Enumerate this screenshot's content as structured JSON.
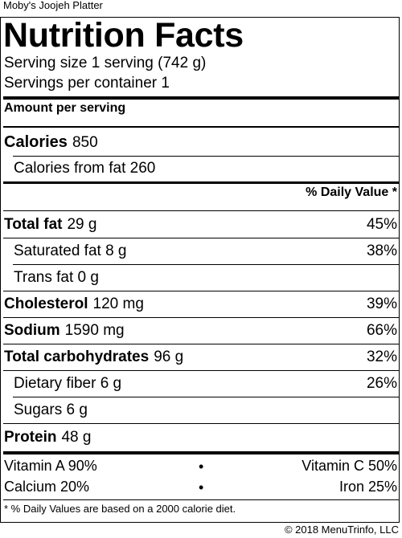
{
  "item_name": "Moby's Joojeh Platter",
  "title": "Nutrition Facts",
  "serving_size": "Serving size 1 serving (742 g)",
  "servings_per_container": "Servings per container 1",
  "amount_per_serving": "Amount per serving",
  "calories": {
    "label": "Calories",
    "value": "850"
  },
  "calories_from_fat": "Calories from fat 260",
  "daily_value_header": "% Daily Value *",
  "nutrients": [
    {
      "name": "Total fat",
      "amount": "29 g",
      "dv": "45%"
    },
    {
      "name": "Saturated fat 8 g",
      "dv": "38%"
    },
    {
      "name": "Trans fat 0 g",
      "dv": ""
    },
    {
      "name": "Cholesterol",
      "amount": "120 mg",
      "dv": "39%"
    },
    {
      "name": "Sodium",
      "amount": "1590 mg",
      "dv": "66%"
    },
    {
      "name": "Total carbohydrates",
      "amount": "96 g",
      "dv": "32%"
    },
    {
      "name": "Dietary fiber 6 g",
      "dv": "26%"
    },
    {
      "name": "Sugars 6 g",
      "dv": ""
    },
    {
      "name": "Protein",
      "amount": "48 g",
      "dv": ""
    }
  ],
  "vitamins": {
    "vitamin_a": "Vitamin A 90%",
    "vitamin_c": "Vitamin C 50%",
    "calcium": "Calcium 20%",
    "iron": "Iron 25%",
    "separator": "•"
  },
  "footnote": "* % Daily Values are based on a 2000 calorie diet.",
  "copyright": "© 2018 MenuTrinfo, LLC"
}
